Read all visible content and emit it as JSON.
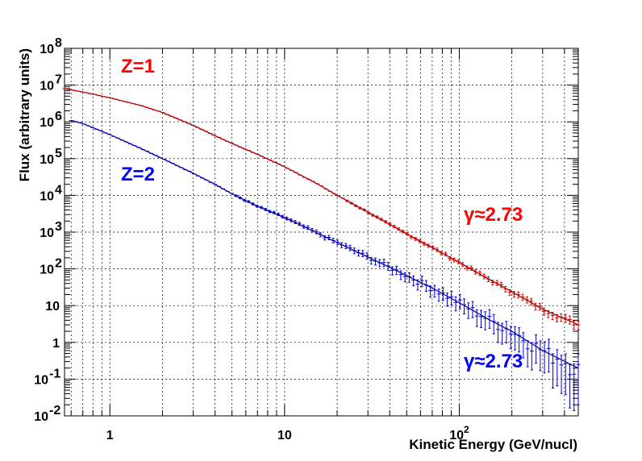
{
  "chart_data": {
    "type": "scatter",
    "xlabel": "Kinetic Energy (GeV/nucl)",
    "ylabel": "Flux (arbitrary units)",
    "x_scale": "log",
    "y_scale": "log",
    "xlim": [
      0.55,
      480
    ],
    "ylim": [
      0.01,
      100000000
    ],
    "grid": true,
    "x_major_ticks": [
      {
        "value": 1,
        "label": "1",
        "exp": ""
      },
      {
        "value": 10,
        "label": "10",
        "exp": ""
      },
      {
        "value": 100,
        "label": "10",
        "exp": "2"
      }
    ],
    "y_major_ticks": [
      {
        "value": 0.01,
        "base": "10",
        "exp": "-2"
      },
      {
        "value": 0.1,
        "base": "10",
        "exp": "-1"
      },
      {
        "value": 1,
        "base": "1",
        "exp": ""
      },
      {
        "value": 10,
        "base": "10",
        "exp": ""
      },
      {
        "value": 100,
        "base": "10",
        "exp": "2"
      },
      {
        "value": 1000,
        "base": "10",
        "exp": "3"
      },
      {
        "value": 10000,
        "base": "10",
        "exp": "4"
      },
      {
        "value": 100000,
        "base": "10",
        "exp": "5"
      },
      {
        "value": 1000000,
        "base": "10",
        "exp": "6"
      },
      {
        "value": 10000000,
        "base": "10",
        "exp": "7"
      },
      {
        "value": 100000000,
        "base": "10",
        "exp": "8"
      }
    ],
    "series": [
      {
        "color": "#8b0000",
        "error_color": "#cc0000",
        "points": [
          [
            0.55,
            8000000
          ],
          [
            0.7,
            6500000
          ],
          [
            1.0,
            4500000
          ],
          [
            1.5,
            2800000
          ],
          [
            2.0,
            1800000
          ],
          [
            3.0,
            800000
          ],
          [
            4.0,
            420000
          ],
          [
            5.0,
            260000
          ],
          [
            7.0,
            130000
          ],
          [
            10.0,
            60000
          ],
          [
            15.0,
            22000
          ],
          [
            20.0,
            10000
          ],
          [
            30.0,
            3500
          ],
          [
            40.0,
            1600
          ],
          [
            50.0,
            900
          ],
          [
            70.0,
            380
          ],
          [
            100.0,
            150
          ],
          [
            150.0,
            50
          ],
          [
            200.0,
            24
          ],
          [
            300.0,
            8
          ],
          [
            480.0,
            3
          ]
        ]
      },
      {
        "color": "#00008b",
        "error_color": "#0000cc",
        "points": [
          [
            0.6,
            1100000
          ],
          [
            0.7,
            900000
          ],
          [
            1.0,
            450000
          ],
          [
            1.5,
            190000
          ],
          [
            2.0,
            100000
          ],
          [
            3.0,
            40000
          ],
          [
            4.0,
            20000
          ],
          [
            5.0,
            11000
          ],
          [
            7.0,
            5000
          ],
          [
            10.0,
            2500
          ],
          [
            15.0,
            1000
          ],
          [
            20.0,
            520
          ],
          [
            30.0,
            210
          ],
          [
            40.0,
            110
          ],
          [
            50.0,
            65
          ],
          [
            70.0,
            30
          ],
          [
            100.0,
            12
          ],
          [
            150.0,
            4
          ],
          [
            200.0,
            2
          ],
          [
            300.0,
            0.6
          ],
          [
            480.0,
            0.2
          ]
        ]
      }
    ],
    "annotations": [
      {
        "text": "Z=1",
        "color": "#ff0000"
      },
      {
        "text": "Z=2",
        "color": "#0000ff"
      },
      {
        "text": "γ≈2.73",
        "color": "#ff0000"
      },
      {
        "text": "γ≈2.73",
        "color": "#0000ff"
      }
    ]
  }
}
